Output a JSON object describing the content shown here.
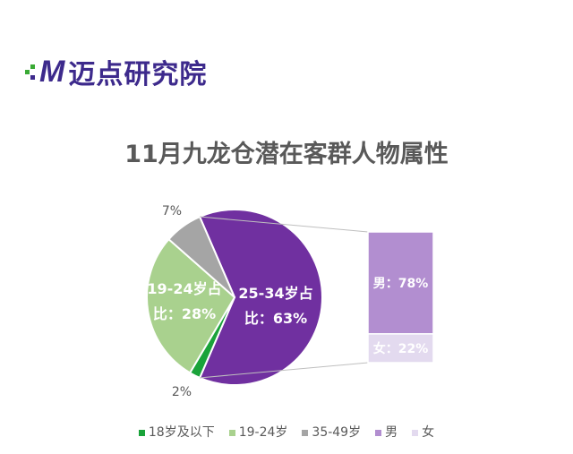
{
  "logo": {
    "text": "M迈点研究院"
  },
  "chart_data": {
    "type": "pie",
    "title": "11月九龙仓潜在客群人物属性",
    "slices": [
      {
        "name": "25-34岁",
        "label": "25-34岁占比：63%",
        "value": 63,
        "color": "#7030a0"
      },
      {
        "name": "18岁及以下",
        "label": "2%",
        "value": 2,
        "color": "#1aa33a"
      },
      {
        "name": "19-24岁",
        "label": "19-24岁占比：28%",
        "value": 28,
        "color": "#a9d18e"
      },
      {
        "name": "35-49岁",
        "label": "7%",
        "value": 7,
        "color": "#a5a5a5"
      }
    ],
    "breakdown": [
      {
        "name": "男",
        "label": "男：78%",
        "value": 78,
        "color": "#b28ed0"
      },
      {
        "name": "女",
        "label": "女：22%",
        "value": 22,
        "color": "#e3daef"
      }
    ],
    "legend": [
      {
        "name": "18岁及以下",
        "color": "#1aa33a"
      },
      {
        "name": "19-24岁",
        "color": "#a9d18e"
      },
      {
        "name": "35-49岁",
        "color": "#a5a5a5"
      },
      {
        "name": "男",
        "color": "#b28ed0"
      },
      {
        "name": "女",
        "color": "#e3daef"
      }
    ],
    "legend_position": "bottom"
  }
}
